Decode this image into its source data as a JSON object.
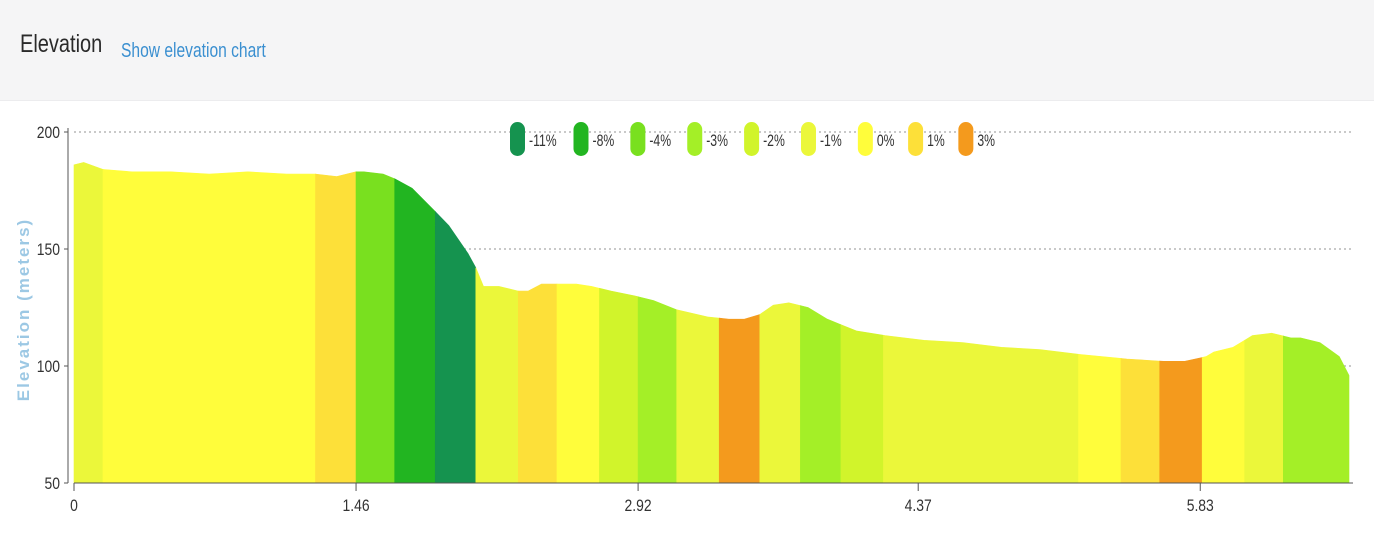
{
  "header": {
    "title": "Elevation",
    "show_chart_link": "Show elevation chart"
  },
  "chart_data": {
    "type": "area",
    "ylabel": "Elevation (meters)",
    "xlabel": "",
    "xlim": [
      0,
      6.6
    ],
    "ylim": [
      50,
      200
    ],
    "xticks": [
      "0",
      "1.46",
      "2.92",
      "4.37",
      "5.83"
    ],
    "xtick_values": [
      0,
      1.46,
      2.92,
      4.37,
      5.83
    ],
    "yticks": [
      "50",
      "100",
      "150",
      "200"
    ],
    "ytick_values": [
      50,
      100,
      150,
      200
    ],
    "grid": "horizontal dotted",
    "legend_position": "top-center",
    "legend": [
      {
        "label": "-11%",
        "color": "#15934f"
      },
      {
        "label": "-8%",
        "color": "#22b521"
      },
      {
        "label": "-4%",
        "color": "#79e01f"
      },
      {
        "label": "-3%",
        "color": "#a4ef27"
      },
      {
        "label": "-2%",
        "color": "#d1f42b"
      },
      {
        "label": "-1%",
        "color": "#ebf73a"
      },
      {
        "label": "0%",
        "color": "#fffd3b"
      },
      {
        "label": "1%",
        "color": "#fde039"
      },
      {
        "label": "3%",
        "color": "#f49a1d"
      }
    ],
    "profile": {
      "x": [
        0,
        0.05,
        0.15,
        0.3,
        0.5,
        0.7,
        0.9,
        1.1,
        1.25,
        1.36,
        1.46,
        1.5,
        1.6,
        1.66,
        1.75,
        1.87,
        1.94,
        2.04,
        2.08,
        2.12,
        2.2,
        2.3,
        2.35,
        2.42,
        2.5,
        2.6,
        2.68,
        2.78,
        2.9,
        3.0,
        3.12,
        3.28,
        3.39,
        3.47,
        3.55,
        3.62,
        3.7,
        3.8,
        3.9,
        4.05,
        4.2,
        4.4,
        4.6,
        4.8,
        5.0,
        5.2,
        5.45,
        5.64,
        5.75,
        5.86,
        5.9,
        6.0,
        6.1,
        6.2,
        6.3,
        6.35,
        6.45,
        6.55,
        6.6
      ],
      "y": [
        186,
        187,
        184,
        183,
        183,
        182,
        183,
        182,
        182,
        181,
        183,
        183,
        182,
        180,
        176,
        166,
        160,
        148,
        142,
        134,
        134,
        132,
        132,
        135,
        135,
        135,
        134,
        132,
        130,
        128,
        124,
        121,
        120,
        120,
        122,
        126,
        127,
        125,
        120,
        115,
        113,
        111,
        110,
        108,
        107,
        105,
        103,
        102,
        102,
        104,
        106,
        108,
        113,
        114,
        112,
        112,
        110,
        104,
        96
      ]
    },
    "segments": [
      {
        "x0": 0,
        "x1": 0.15,
        "grade": "-1%"
      },
      {
        "x0": 0.15,
        "x1": 1.25,
        "grade": "0%"
      },
      {
        "x0": 1.25,
        "x1": 1.46,
        "grade": "1%"
      },
      {
        "x0": 1.46,
        "x1": 1.66,
        "grade": "-4%"
      },
      {
        "x0": 1.66,
        "x1": 1.87,
        "grade": "-8%"
      },
      {
        "x0": 1.87,
        "x1": 2.08,
        "grade": "-11%"
      },
      {
        "x0": 2.08,
        "x1": 2.3,
        "grade": "-1%"
      },
      {
        "x0": 2.3,
        "x1": 2.5,
        "grade": "1%"
      },
      {
        "x0": 2.5,
        "x1": 2.72,
        "grade": "0%"
      },
      {
        "x0": 2.72,
        "x1": 2.92,
        "grade": "-2%"
      },
      {
        "x0": 2.92,
        "x1": 3.12,
        "grade": "-3%"
      },
      {
        "x0": 3.12,
        "x1": 3.34,
        "grade": "-1%"
      },
      {
        "x0": 3.34,
        "x1": 3.55,
        "grade": "3%"
      },
      {
        "x0": 3.55,
        "x1": 3.76,
        "grade": "-1%"
      },
      {
        "x0": 3.76,
        "x1": 3.97,
        "grade": "-3%"
      },
      {
        "x0": 3.97,
        "x1": 4.19,
        "grade": "-2%"
      },
      {
        "x0": 4.19,
        "x1": 5.2,
        "grade": "-1%"
      },
      {
        "x0": 5.2,
        "x1": 5.42,
        "grade": "0%"
      },
      {
        "x0": 5.42,
        "x1": 5.62,
        "grade": "1%"
      },
      {
        "x0": 5.62,
        "x1": 5.84,
        "grade": "3%"
      },
      {
        "x0": 5.84,
        "x1": 6.06,
        "grade": "0%"
      },
      {
        "x0": 6.06,
        "x1": 6.26,
        "grade": "-1%"
      },
      {
        "x0": 6.26,
        "x1": 6.6,
        "grade": "-3%"
      }
    ]
  }
}
